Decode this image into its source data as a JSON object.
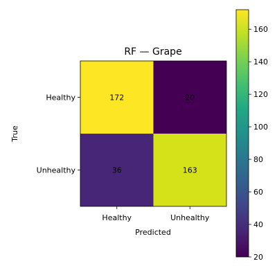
{
  "chart_data": {
    "type": "heatmap",
    "title": "RF — Grape",
    "xlabel": "Predicted",
    "ylabel": "True",
    "x_categories": [
      "Healthy",
      "Unhealthy"
    ],
    "y_categories": [
      "Healthy",
      "Unhealthy"
    ],
    "values": [
      [
        172,
        20
      ],
      [
        36,
        163
      ]
    ],
    "colormap": "viridis",
    "color_range": [
      20,
      172
    ],
    "colorbar_ticks": [
      "20",
      "40",
      "60",
      "80",
      "100",
      "120",
      "140",
      "160"
    ],
    "colors": {
      "172": "#fde725",
      "20": "#440154",
      "36": "#482677",
      "163": "#d5e21a"
    }
  }
}
